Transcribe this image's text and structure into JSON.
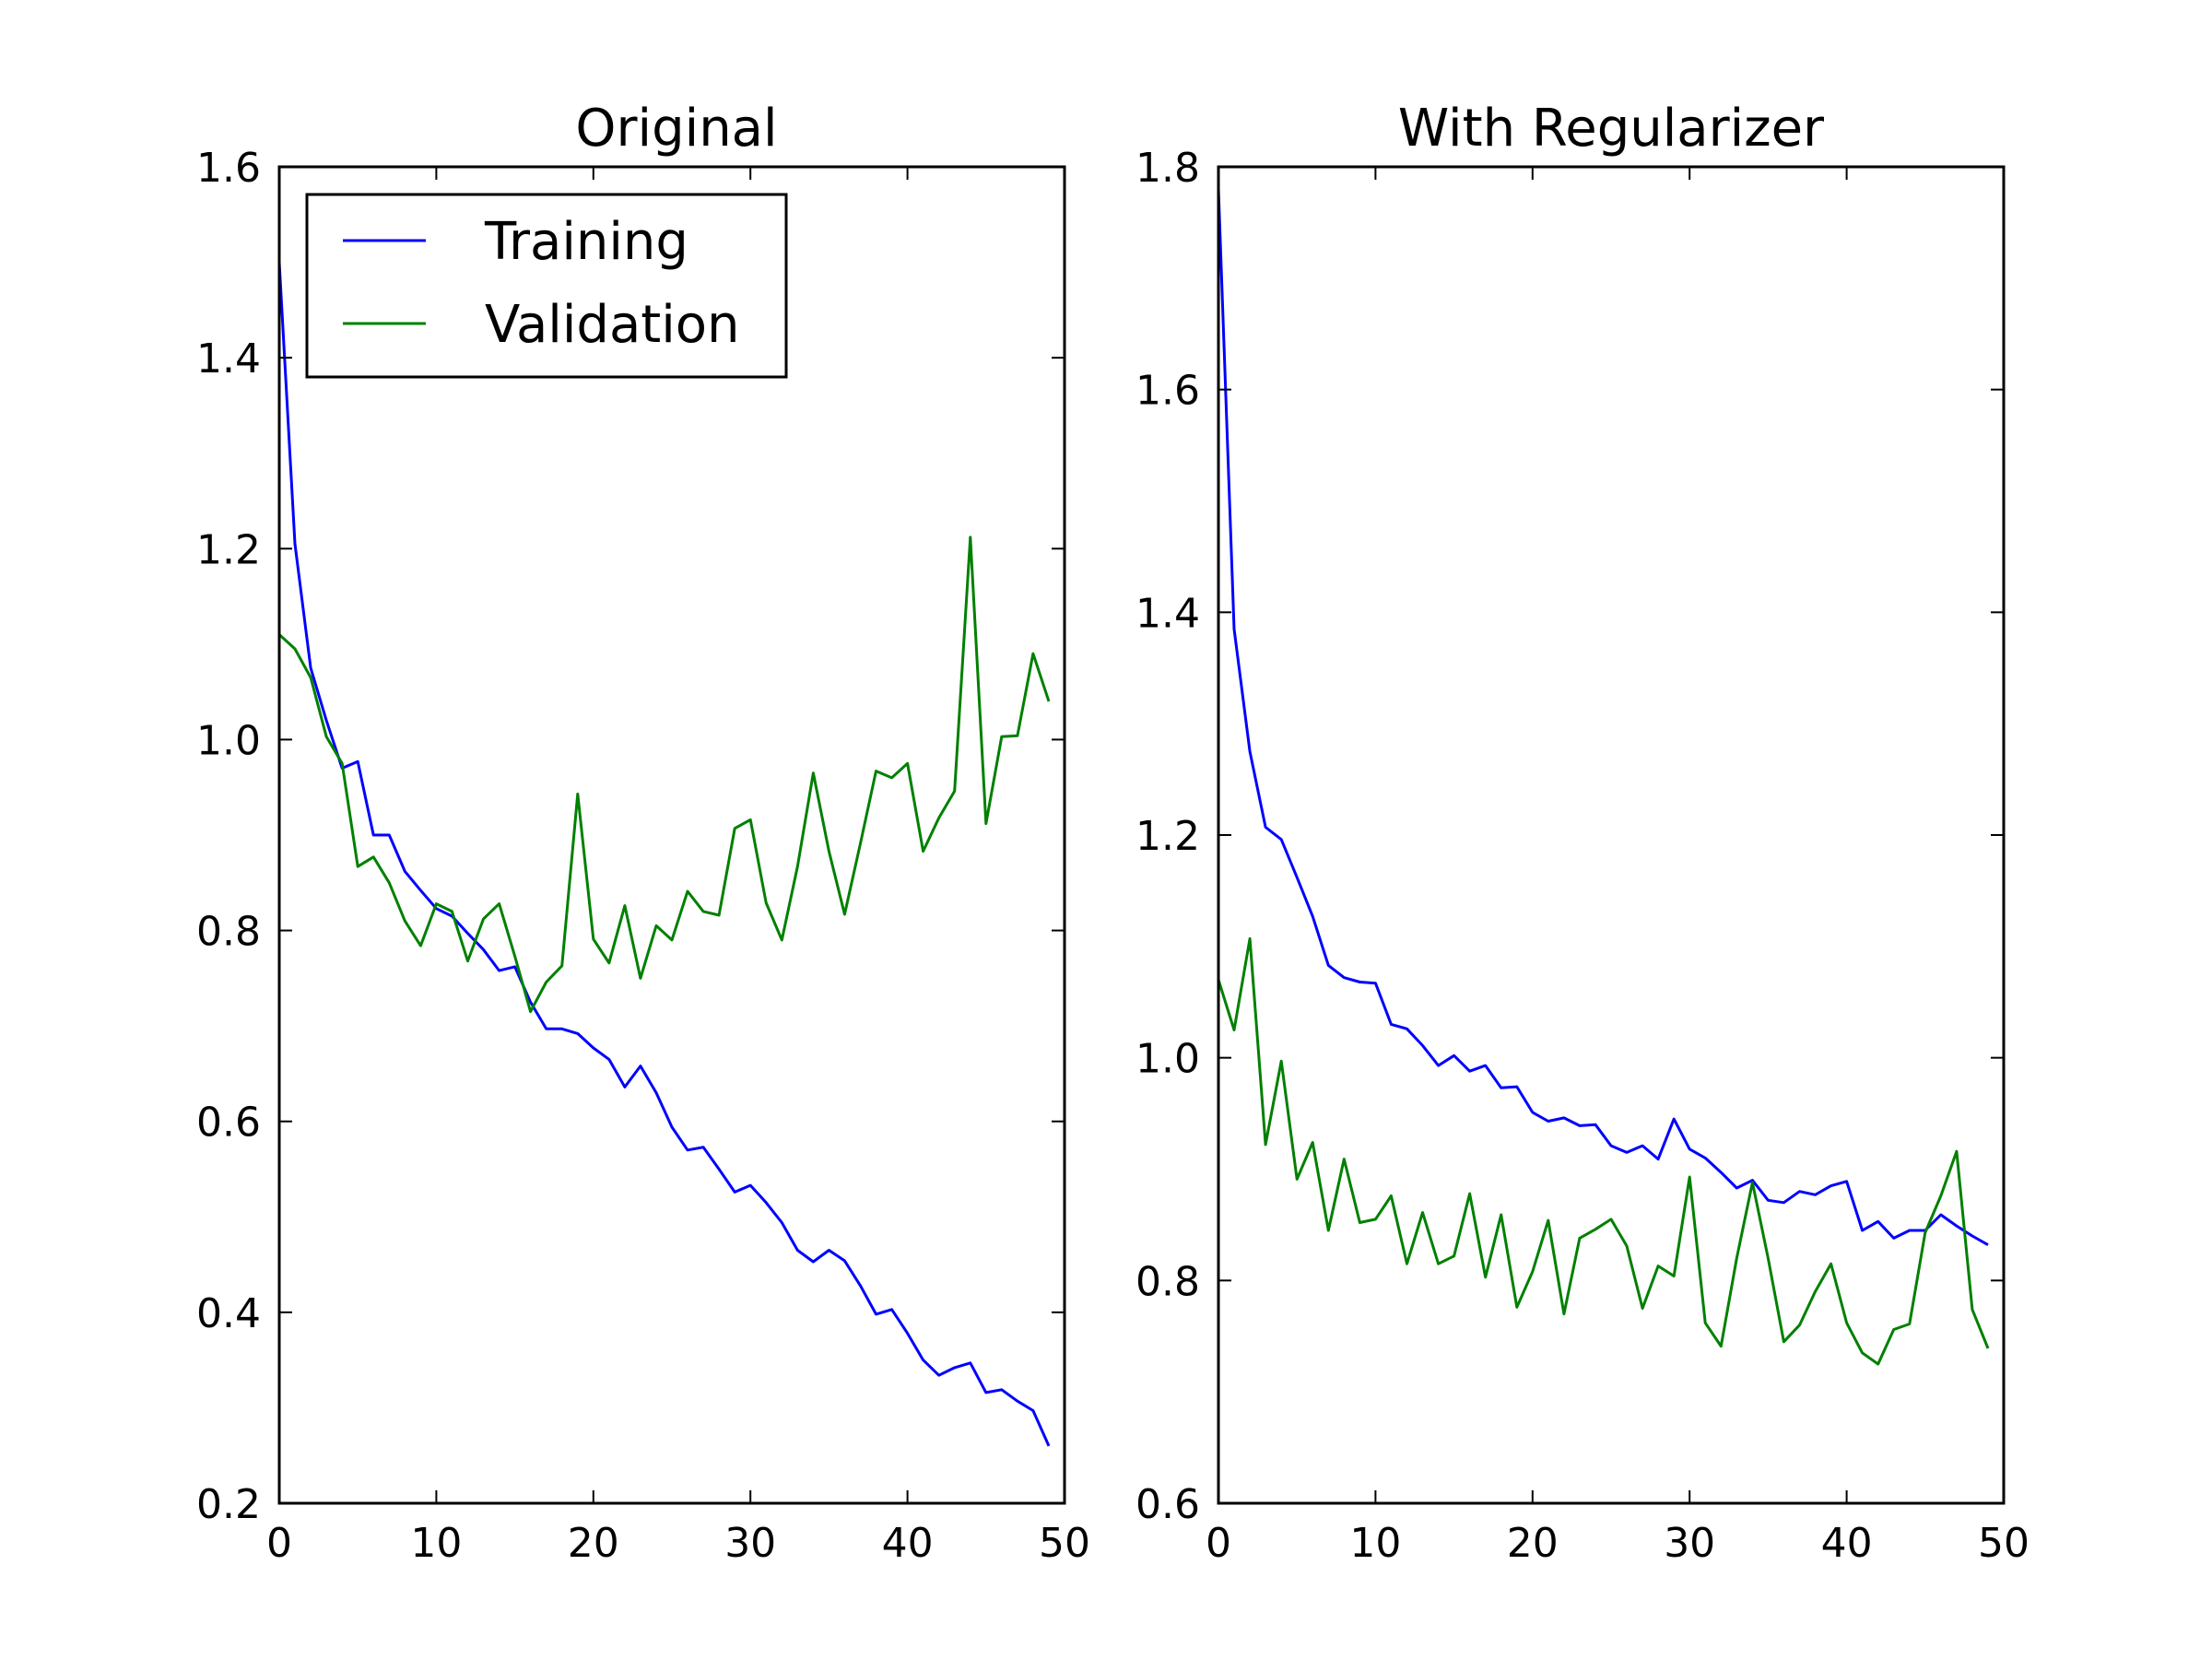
{
  "chart_data": [
    {
      "type": "line",
      "title": "Original",
      "xlabel": "",
      "ylabel": "",
      "xlim": [
        0,
        50
      ],
      "ylim": [
        0.2,
        1.6
      ],
      "xticks": [
        0,
        10,
        20,
        30,
        40,
        50
      ],
      "yticks": [
        0.2,
        0.4,
        0.6,
        0.8,
        1.0,
        1.2,
        1.4,
        1.6
      ],
      "xtick_labels": [
        "0",
        "10",
        "20",
        "30",
        "40",
        "50"
      ],
      "ytick_labels": [
        "0.2",
        "0.4",
        "0.6",
        "0.8",
        "1.0",
        "1.2",
        "1.4",
        "1.6"
      ],
      "grid": false,
      "legend": {
        "position": "upper-left"
      },
      "series": [
        {
          "name": "Training",
          "color": "#0000ff",
          "x": [
            0,
            1,
            2,
            3,
            4,
            5,
            6,
            7,
            8,
            9,
            10,
            11,
            12,
            13,
            14,
            15,
            16,
            17,
            18,
            19,
            20,
            21,
            22,
            23,
            24,
            25,
            26,
            27,
            28,
            29,
            30,
            31,
            32,
            33,
            34,
            35,
            36,
            37,
            38,
            39,
            40,
            41,
            42,
            43,
            44,
            45,
            46,
            47,
            48,
            49
          ],
          "values": [
            1.5,
            1.205,
            1.075,
            1.02,
            0.97,
            0.977,
            0.9,
            0.9,
            0.862,
            0.842,
            0.823,
            0.815,
            0.797,
            0.78,
            0.758,
            0.762,
            0.725,
            0.697,
            0.697,
            0.692,
            0.677,
            0.665,
            0.636,
            0.658,
            0.63,
            0.594,
            0.57,
            0.573,
            0.55,
            0.526,
            0.533,
            0.515,
            0.494,
            0.465,
            0.453,
            0.465,
            0.454,
            0.428,
            0.398,
            0.403,
            0.378,
            0.35,
            0.334,
            0.342,
            0.347,
            0.316,
            0.319,
            0.307,
            0.297,
            0.26
          ]
        },
        {
          "name": "Validation",
          "color": "#008000",
          "x": [
            0,
            1,
            2,
            3,
            4,
            5,
            6,
            7,
            8,
            9,
            10,
            11,
            12,
            13,
            14,
            15,
            16,
            17,
            18,
            19,
            20,
            21,
            22,
            23,
            24,
            25,
            26,
            27,
            28,
            29,
            30,
            31,
            32,
            33,
            34,
            35,
            36,
            37,
            38,
            39,
            40,
            41,
            42,
            43,
            44,
            45,
            46,
            47,
            48,
            49
          ],
          "values": [
            1.11,
            1.095,
            1.065,
            1.003,
            0.975,
            0.867,
            0.877,
            0.85,
            0.81,
            0.784,
            0.828,
            0.82,
            0.768,
            0.812,
            0.828,
            0.773,
            0.715,
            0.746,
            0.763,
            0.943,
            0.791,
            0.766,
            0.826,
            0.75,
            0.805,
            0.79,
            0.841,
            0.82,
            0.816,
            0.907,
            0.916,
            0.829,
            0.79,
            0.867,
            0.965,
            0.883,
            0.817,
            0.891,
            0.967,
            0.96,
            0.975,
            0.883,
            0.918,
            0.946,
            1.212,
            0.912,
            1.003,
            1.004,
            1.09,
            1.04
          ]
        }
      ]
    },
    {
      "type": "line",
      "title": "With Regularizer",
      "xlabel": "",
      "ylabel": "",
      "xlim": [
        0,
        50
      ],
      "ylim": [
        0.6,
        1.8
      ],
      "xticks": [
        0,
        10,
        20,
        30,
        40,
        50
      ],
      "yticks": [
        0.6,
        0.8,
        1.0,
        1.2,
        1.4,
        1.6,
        1.8
      ],
      "xtick_labels": [
        "0",
        "10",
        "20",
        "30",
        "40",
        "50"
      ],
      "ytick_labels": [
        "0.6",
        "0.8",
        "1.0",
        "1.2",
        "1.4",
        "1.6",
        "1.8"
      ],
      "grid": false,
      "series": [
        {
          "name": "Training",
          "color": "#0000ff",
          "x": [
            0,
            1,
            2,
            3,
            4,
            5,
            6,
            7,
            8,
            9,
            10,
            11,
            12,
            13,
            14,
            15,
            16,
            17,
            18,
            19,
            20,
            21,
            22,
            23,
            24,
            25,
            26,
            27,
            28,
            29,
            30,
            31,
            32,
            33,
            34,
            35,
            36,
            37,
            38,
            39,
            40,
            41,
            42,
            43,
            44,
            45,
            46,
            47,
            48,
            49
          ],
          "values": [
            1.78,
            1.385,
            1.275,
            1.207,
            1.196,
            1.162,
            1.127,
            1.083,
            1.072,
            1.068,
            1.067,
            1.03,
            1.026,
            1.011,
            0.993,
            1.002,
            0.988,
            0.993,
            0.973,
            0.974,
            0.951,
            0.943,
            0.946,
            0.939,
            0.94,
            0.921,
            0.915,
            0.921,
            0.909,
            0.945,
            0.918,
            0.91,
            0.897,
            0.883,
            0.89,
            0.872,
            0.87,
            0.88,
            0.877,
            0.885,
            0.889,
            0.845,
            0.853,
            0.838,
            0.845,
            0.845,
            0.859,
            0.849,
            0.84,
            0.832
          ]
        },
        {
          "name": "Validation",
          "color": "#008000",
          "x": [
            0,
            1,
            2,
            3,
            4,
            5,
            6,
            7,
            8,
            9,
            10,
            11,
            12,
            13,
            14,
            15,
            16,
            17,
            18,
            19,
            20,
            21,
            22,
            23,
            24,
            25,
            26,
            27,
            28,
            29,
            30,
            31,
            32,
            33,
            34,
            35,
            36,
            37,
            38,
            39,
            40,
            41,
            42,
            43,
            44,
            45,
            46,
            47,
            48,
            49
          ],
          "values": [
            1.07,
            1.025,
            1.107,
            0.922,
            0.997,
            0.891,
            0.924,
            0.845,
            0.909,
            0.852,
            0.855,
            0.876,
            0.815,
            0.861,
            0.815,
            0.822,
            0.878,
            0.803,
            0.859,
            0.776,
            0.808,
            0.854,
            0.77,
            0.838,
            0.846,
            0.855,
            0.831,
            0.775,
            0.813,
            0.804,
            0.893,
            0.762,
            0.741,
            0.82,
            0.888,
            0.82,
            0.745,
            0.76,
            0.79,
            0.815,
            0.762,
            0.735,
            0.725,
            0.756,
            0.761,
            0.843,
            0.876,
            0.916,
            0.774,
            0.739
          ]
        }
      ]
    }
  ]
}
